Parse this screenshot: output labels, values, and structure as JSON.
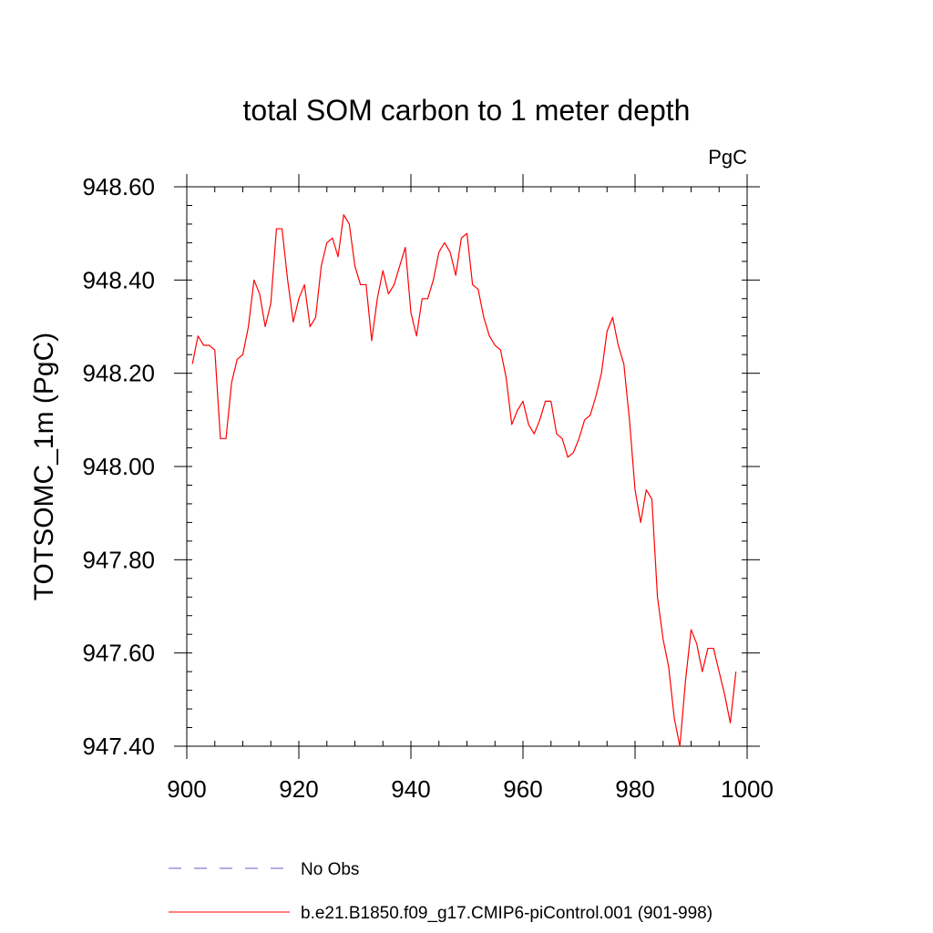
{
  "chart_data": {
    "type": "line",
    "title": "total SOM carbon to 1 meter depth",
    "units_label": "PgC",
    "xlabel": "",
    "ylabel": "TOTSOMC_1m  (PgC)",
    "xlim": [
      900,
      1000
    ],
    "ylim": [
      947.4,
      948.6
    ],
    "x_ticks": [
      900,
      920,
      940,
      960,
      980,
      1000
    ],
    "x_tick_labels": [
      "900",
      "920",
      "940",
      "960",
      "980",
      "1000"
    ],
    "x_minor_step": 5,
    "y_ticks": [
      947.4,
      947.6,
      947.8,
      948.0,
      948.2,
      948.4,
      948.6
    ],
    "y_tick_labels": [
      "947.40",
      "947.60",
      "947.80",
      "948.00",
      "948.20",
      "948.40",
      "948.60"
    ],
    "y_minor_step": 0.04,
    "grid": false,
    "legend": [
      {
        "name": "No Obs",
        "color": "#6a5acd",
        "style": "dashed"
      },
      {
        "name": "b.e21.B1850.f09_g17.CMIP6-piControl.001 (901-998)",
        "color": "#ff0000",
        "style": "solid"
      }
    ],
    "series": [
      {
        "name": "b.e21.B1850.f09_g17.CMIP6-piControl.001 (901-998)",
        "color": "#ff0000",
        "x": [
          901,
          902,
          903,
          904,
          905,
          906,
          907,
          908,
          909,
          910,
          911,
          912,
          913,
          914,
          915,
          916,
          917,
          918,
          919,
          920,
          921,
          922,
          923,
          924,
          925,
          926,
          927,
          928,
          929,
          930,
          931,
          932,
          933,
          934,
          935,
          936,
          937,
          938,
          939,
          940,
          941,
          942,
          943,
          944,
          945,
          946,
          947,
          948,
          949,
          950,
          951,
          952,
          953,
          954,
          955,
          956,
          957,
          958,
          959,
          960,
          961,
          962,
          963,
          964,
          965,
          966,
          967,
          968,
          969,
          970,
          971,
          972,
          973,
          974,
          975,
          976,
          977,
          978,
          979,
          980,
          981,
          982,
          983,
          984,
          985,
          986,
          987,
          988,
          989,
          990,
          991,
          992,
          993,
          994,
          995,
          996,
          997,
          998
        ],
        "values": [
          948.22,
          948.28,
          948.26,
          948.26,
          948.25,
          948.06,
          948.06,
          948.18,
          948.23,
          948.24,
          948.3,
          948.4,
          948.37,
          948.3,
          948.35,
          948.51,
          948.51,
          948.4,
          948.31,
          948.36,
          948.39,
          948.3,
          948.32,
          948.43,
          948.48,
          948.49,
          948.45,
          948.54,
          948.52,
          948.43,
          948.39,
          948.39,
          948.27,
          948.36,
          948.42,
          948.37,
          948.39,
          948.43,
          948.47,
          948.33,
          948.28,
          948.36,
          948.36,
          948.4,
          948.46,
          948.48,
          948.46,
          948.41,
          948.49,
          948.5,
          948.39,
          948.38,
          948.32,
          948.28,
          948.26,
          948.25,
          948.19,
          948.09,
          948.12,
          948.14,
          948.09,
          948.07,
          948.1,
          948.14,
          948.14,
          948.07,
          948.06,
          948.02,
          948.03,
          948.06,
          948.1,
          948.11,
          948.15,
          948.2,
          948.29,
          948.32,
          948.26,
          948.22,
          948.1,
          947.95,
          947.88,
          947.95,
          947.93,
          947.72,
          947.63,
          947.57,
          947.46,
          947.4,
          947.54,
          947.65,
          947.62,
          947.56,
          947.61,
          947.61,
          947.56,
          947.51,
          947.45,
          947.56
        ]
      }
    ]
  }
}
